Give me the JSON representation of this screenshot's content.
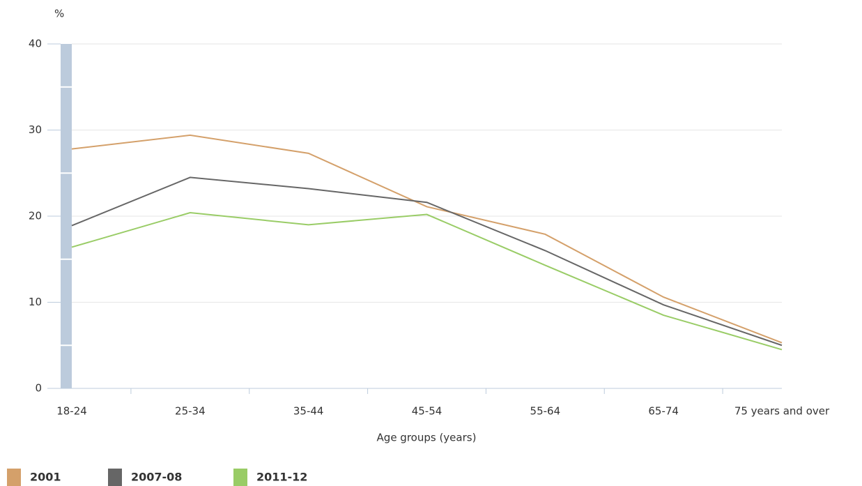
{
  "chart_data": {
    "type": "line",
    "y_label": "%",
    "x_label": "Age groups (years)",
    "categories": [
      "18-24",
      "25-34",
      "35-44",
      "45-54",
      "55-64",
      "65-74",
      "75 years and over"
    ],
    "series": [
      {
        "name": "2001",
        "color": "#d4a06a",
        "values": [
          27.8,
          29.4,
          27.3,
          21.1,
          17.9,
          10.6,
          5.3
        ]
      },
      {
        "name": "2007-08",
        "color": "#666666",
        "values": [
          18.9,
          24.5,
          23.2,
          21.6,
          16.0,
          9.7,
          5.0
        ]
      },
      {
        "name": "2011-12",
        "color": "#99cc66",
        "values": [
          16.4,
          20.4,
          19.0,
          20.2,
          14.3,
          8.5,
          4.5
        ]
      }
    ],
    "ylim": [
      0,
      40
    ],
    "yticks": [
      0,
      10,
      20,
      30,
      40
    ],
    "grid": true,
    "legend": "bottom-left"
  }
}
